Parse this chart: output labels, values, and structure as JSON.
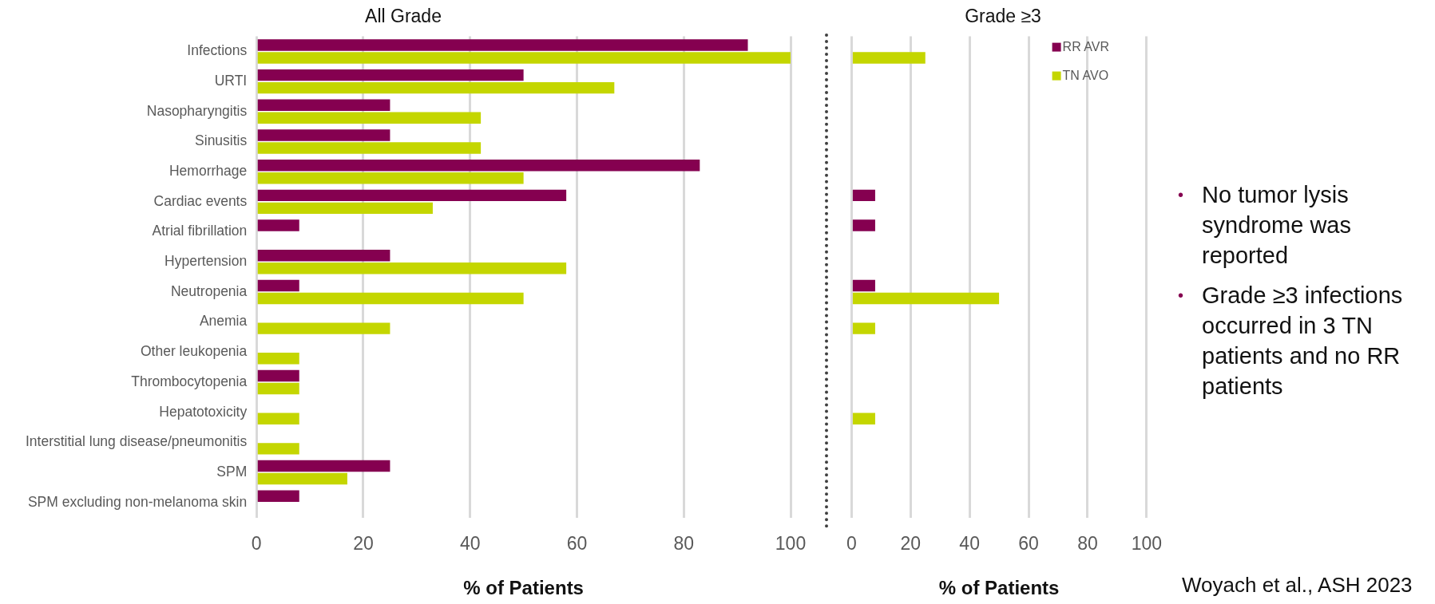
{
  "chart_data": [
    {
      "type": "bar",
      "orientation": "horizontal",
      "title": "All Grade",
      "xlabel": "% of Patients",
      "categories": [
        "Infections",
        "URTI",
        "Nasopharyngitis",
        "Sinusitis",
        "Hemorrhage",
        "Cardiac events",
        "Atrial fibrillation",
        "Hypertension",
        "Neutropenia",
        "Anemia",
        "Other leukopenia",
        "Thrombocytopenia",
        "Hepatotoxicity",
        "Interstitial lung disease/pneumonitis",
        "SPM",
        "SPM excluding non-melanoma skin"
      ],
      "series": [
        {
          "color": "#850050",
          "values": [
            92,
            50,
            25,
            25,
            83,
            58,
            8,
            25,
            8,
            null,
            null,
            8,
            null,
            null,
            25,
            8
          ]
        },
        {
          "color": "#c4d600",
          "values": [
            100,
            67,
            42,
            42,
            50,
            33,
            null,
            58,
            50,
            25,
            8,
            8,
            8,
            8,
            17,
            null
          ]
        }
      ],
      "xlim": [
        0,
        100
      ],
      "xticks": [
        0,
        20,
        40,
        60,
        80,
        100
      ],
      "grid": "x",
      "legend": false
    },
    {
      "type": "bar",
      "orientation": "horizontal",
      "title": "Grade ≥3",
      "xlabel": "% of Patients",
      "categories": [
        null,
        null,
        null,
        null,
        null,
        null,
        null,
        null,
        null,
        null,
        null,
        null,
        null,
        null,
        null,
        null
      ],
      "series": [
        {
          "name": "RR AVR",
          "color": "#850050",
          "values": [
            null,
            null,
            null,
            null,
            null,
            8,
            8,
            null,
            8,
            null,
            null,
            null,
            null,
            null,
            null,
            null
          ]
        },
        {
          "name": "TN AVO",
          "color": "#c4d600",
          "values": [
            25,
            null,
            null,
            null,
            null,
            null,
            null,
            null,
            50,
            8,
            null,
            null,
            8,
            null,
            null,
            null
          ]
        }
      ],
      "xlim": [
        0,
        100
      ],
      "xticks": [
        0,
        20,
        40,
        60,
        80,
        100
      ],
      "grid": "x",
      "legend": "top right",
      "tick_labels": "x",
      "annotations": [
        "• No tumor lysis syndrome was reported",
        "• Grade ≥3 infections occurred in 3 TN patients and no RR patients",
        "Woyach et al., ASH 2023"
      ]
    }
  ]
}
